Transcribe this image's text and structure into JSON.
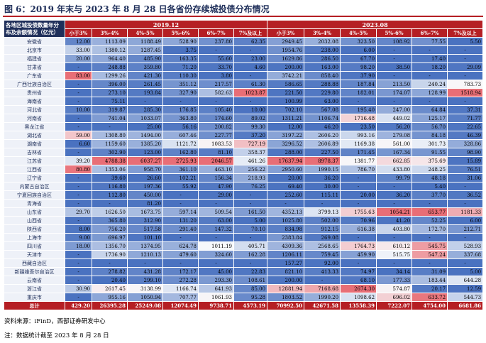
{
  "title": "图 6：2019 年末与 2023 年 8 月 28 日各省份存续城投债分布情况",
  "corner_label": "各地区城投债数量年分布及余额情况（亿元）",
  "periods": [
    "2019.12",
    "2023.08"
  ],
  "columns": [
    "小于3%",
    "3%-4%",
    "4%-5%",
    "5%-6%",
    "6%-7%",
    "7%及以上",
    "小于3%",
    "3%-4%",
    "4%-5%",
    "5%-6%",
    "6%-7%",
    "7%及以上"
  ],
  "rows": [
    {
      "province": "安徽省",
      "values": [
        "12.00",
        "1113.09",
        "1188.49",
        "528.90",
        "237.80",
        "62.35",
        "2949.45",
        "2032.08",
        "323.50",
        "108.92",
        "77.55",
        "5.50"
      ]
    },
    {
      "province": "北京市",
      "values": [
        "33.00",
        "1380.12",
        "1287.45",
        "3.75",
        "-",
        "-",
        "1954.76",
        "238.00",
        "6.00",
        "-",
        "-",
        "-"
      ]
    },
    {
      "province": "福建省",
      "values": [
        "20.00",
        "964.40",
        "485.90",
        "163.35",
        "55.60",
        "23.00",
        "1629.86",
        "286.50",
        "67.70",
        "-",
        "17.40",
        "-"
      ]
    },
    {
      "province": "甘肃省",
      "values": [
        "-",
        "248.88",
        "359.80",
        "71.20",
        "33.70",
        "4.60",
        "200.00",
        "163.00",
        "98.20",
        "38.50",
        "18.20",
        "29.09"
      ]
    },
    {
      "province": "广东省",
      "values": [
        "83.00",
        "1299.26",
        "421.30",
        "110.30",
        "3.80",
        "-",
        "3742.21",
        "858.40",
        "37.90",
        "-",
        "-",
        "-"
      ]
    },
    {
      "province": "广西壮族自治区",
      "values": [
        "-",
        "396.00",
        "261.45",
        "351.12",
        "217.57",
        "61.30",
        "586.65",
        "288.88",
        "187.84",
        "213.50",
        "240.24",
        "783.73"
      ]
    },
    {
      "province": "贵州省",
      "values": [
        "-",
        "273.10",
        "193.84",
        "327.90",
        "582.63",
        "1023.87",
        "221.50",
        "229.80",
        "182.01",
        "174.07",
        "128.99",
        "1518.94"
      ]
    },
    {
      "province": "海南省",
      "values": [
        "-",
        "75.11",
        "-",
        "-",
        "-",
        "-",
        "100.99",
        "63.00",
        "-",
        "-",
        "-",
        "-"
      ]
    },
    {
      "province": "河北省",
      "values": [
        "10.00",
        "319.87",
        "285.30",
        "176.85",
        "105.40",
        "10.00",
        "702.10",
        "567.08",
        "195.40",
        "247.00",
        "64.84",
        "37.31"
      ]
    },
    {
      "province": "河南省",
      "values": [
        "-",
        "741.04",
        "1033.07",
        "363.80",
        "174.60",
        "89.02",
        "1311.21",
        "1106.74",
        "1716.48",
        "449.02",
        "125.17",
        "71.77"
      ]
    },
    {
      "province": "黑龙江省",
      "values": [
        "-",
        "-",
        "25.00",
        "56.16",
        "200.82",
        "99.30",
        "12.00",
        "46.20",
        "23.50",
        "56.20",
        "56.70",
        "22.65"
      ]
    },
    {
      "province": "湖北省",
      "values": [
        "59.00",
        "1308.80",
        "1494.00",
        "607.46",
        "227.77",
        "37.20",
        "3197.22",
        "2606.20",
        "993.16",
        "279.08",
        "84.18",
        "46.39"
      ]
    },
    {
      "province": "湖南省",
      "values": [
        "6.60",
        "1159.60",
        "1385.20",
        "1121.72",
        "1083.53",
        "727.19",
        "3296.52",
        "2606.89",
        "1169.38",
        "561.00",
        "301.73",
        "328.86"
      ]
    },
    {
      "province": "吉林省",
      "values": [
        "-",
        "302.90",
        "123.00",
        "162.80",
        "81.10",
        "358.37",
        "288.00",
        "227.50",
        "171.45",
        "167.34",
        "91.55",
        "98.90"
      ]
    },
    {
      "province": "江苏省",
      "values": [
        "39.20",
        "4788.38",
        "6037.27",
        "2725.93",
        "2046.57",
        "461.26",
        "17637.94",
        "8978.37",
        "1381.77",
        "662.85",
        "375.69",
        "15.89"
      ]
    },
    {
      "province": "江西省",
      "values": [
        "80.80",
        "1353.06",
        "958.70",
        "361.10",
        "463.10",
        "256.22",
        "2950.60",
        "1990.15",
        "786.70",
        "433.80",
        "248.25",
        "76.51"
      ]
    },
    {
      "province": "辽宁省",
      "values": [
        "-",
        "39.60",
        "26.60",
        "102.21",
        "156.34",
        "218.93",
        "20.00",
        "36.20",
        "-",
        "99.79",
        "48.18",
        "31.06"
      ]
    },
    {
      "province": "内蒙古自治区",
      "values": [
        "-",
        "116.80",
        "197.36",
        "55.92",
        "47.90",
        "76.25",
        "69.40",
        "30.00",
        "-",
        "-",
        "5.40",
        "-"
      ]
    },
    {
      "province": "宁夏回族自治区",
      "values": [
        "-",
        "112.80",
        "450.00",
        "-",
        "29.00",
        "-",
        "252.60",
        "115.11",
        "20.00",
        "36.20",
        "37.70",
        "36.52"
      ]
    },
    {
      "province": "青海省",
      "values": [
        "-",
        "-",
        "81.20",
        "-",
        "-",
        "-",
        "-",
        "-",
        "-",
        "-",
        "-",
        "-"
      ]
    },
    {
      "province": "山东省",
      "values": [
        "29.70",
        "1626.50",
        "1673.75",
        "597.14",
        "509.54",
        "161.50",
        "4352.13",
        "3799.13",
        "1755.63",
        "1054.21",
        "653.77",
        "1181.33"
      ]
    },
    {
      "province": "山西省",
      "values": [
        "-",
        "365.80",
        "312.90",
        "131.20",
        "63.00",
        "5.00",
        "1025.80",
        "502.00",
        "70.96",
        "41.20",
        "52.25",
        "6.00"
      ]
    },
    {
      "province": "陕西省",
      "values": [
        "8.00",
        "756.20",
        "517.58",
        "291.40",
        "147.32",
        "70.10",
        "834.98",
        "912.15",
        "616.38",
        "403.80",
        "172.70",
        "212.71"
      ]
    },
    {
      "province": "上海市",
      "values": [
        "9.00",
        "696.97",
        "101.10",
        "-",
        "-",
        "-",
        "2383.84",
        "269.08",
        "-",
        "-",
        "-",
        "-"
      ]
    },
    {
      "province": "四川省",
      "values": [
        "18.00",
        "1356.70",
        "1374.95",
        "624.78",
        "1011.19",
        "405.71",
        "4309.36",
        "2568.65",
        "1764.73",
        "610.12",
        "545.75",
        "528.93"
      ]
    },
    {
      "province": "天津市",
      "values": [
        "-",
        "1736.90",
        "1210.13",
        "479.60",
        "324.60",
        "162.28",
        "1206.11",
        "759.45",
        "459.90",
        "515.75",
        "547.24",
        "337.68"
      ]
    },
    {
      "province": "西藏自治区",
      "values": [
        "-",
        "-",
        "-",
        "-",
        "-",
        "-",
        "157.27",
        "92.00",
        "-",
        "-",
        "-",
        "-"
      ]
    },
    {
      "province": "新疆维吾尔自治区",
      "values": [
        "-",
        "278.82",
        "431.28",
        "172.17",
        "45.00",
        "22.83",
        "821.10",
        "413.33",
        "74.97",
        "34.14",
        "31.09",
        "5.00"
      ]
    },
    {
      "province": "云南省",
      "values": [
        "-",
        "20.40",
        "299.10",
        "272.28",
        "293.30",
        "108.61",
        "200.00",
        "-",
        "68.10",
        "177.33",
        "183.44",
        "644.28"
      ]
    },
    {
      "province": "浙江省",
      "values": [
        "30.90",
        "2617.45",
        "3138.99",
        "1166.74",
        "641.93",
        "85.00",
        "12881.94",
        "7168.68",
        "2674.30",
        "574.87",
        "20.17",
        "12.59"
      ]
    },
    {
      "province": "重庆市",
      "values": [
        "-",
        "955.16",
        "1050.94",
        "707.77",
        "1061.93",
        "95.28",
        "1803.52",
        "1990.20",
        "1098.62",
        "696.02",
        "633.72",
        "544.73"
      ]
    }
  ],
  "total": {
    "label": "总计",
    "values": [
      "429.20",
      "26395.28",
      "25249.08",
      "12074.49",
      "9738.71",
      "4573.19",
      "70992.50",
      "42671.58",
      "13558.39",
      "7222.07",
      "4754.00",
      "6681.86"
    ]
  },
  "source": "资料来源：iFinD，西部证券研发中心",
  "note": "注：数据统计截至 2023 年 8 月 28 日"
}
